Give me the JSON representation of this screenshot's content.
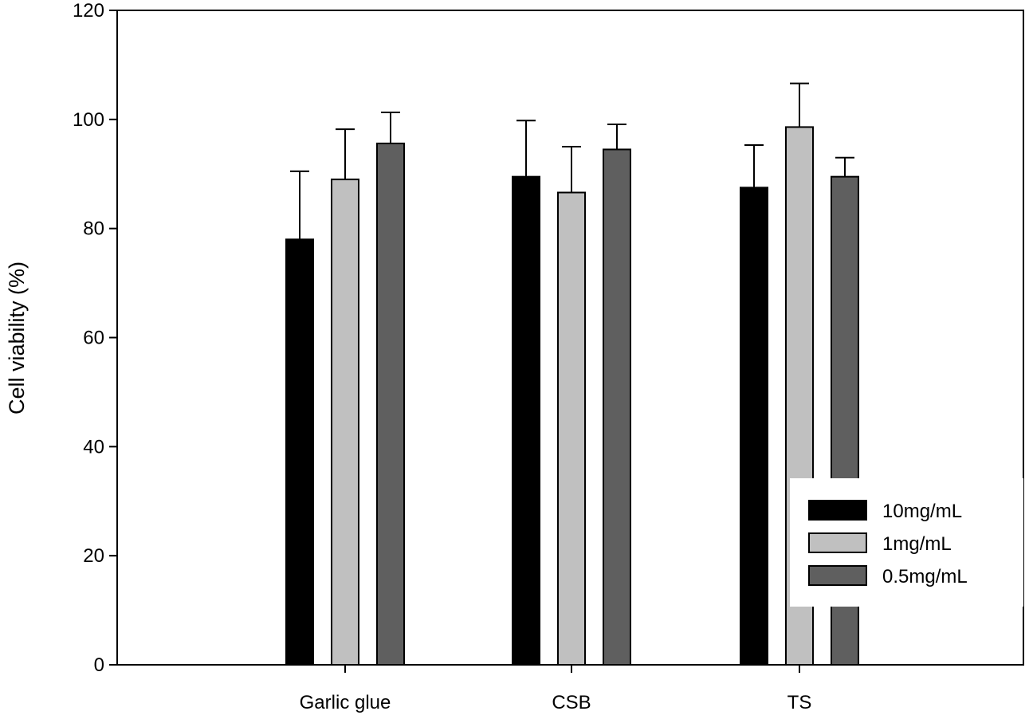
{
  "chart_data": {
    "type": "bar",
    "title": "",
    "xlabel": "",
    "ylabel": "Cell viability (%)",
    "categories": [
      "Garlic glue",
      "CSB",
      "TS"
    ],
    "ylim": [
      0,
      120
    ],
    "yticks": [
      "0",
      "20",
      "40",
      "60",
      "80",
      "100",
      "120"
    ],
    "grid": false,
    "legend_position": "bottom-right",
    "series": [
      {
        "name": "10mg/mL",
        "color": "#000000",
        "values": [
          78,
          89.5,
          87.5
        ],
        "errors": [
          12.5,
          10.3,
          7.8
        ]
      },
      {
        "name": "1mg/mL",
        "color": "#c0c0c0",
        "values": [
          89,
          86.6,
          98.6
        ],
        "errors": [
          9.2,
          8.4,
          8
        ]
      },
      {
        "name": "0.5mg/mL",
        "color": "#5f5f5f",
        "values": [
          95.6,
          94.5,
          89.5
        ],
        "errors": [
          5.7,
          4.6,
          3.5
        ]
      }
    ]
  }
}
